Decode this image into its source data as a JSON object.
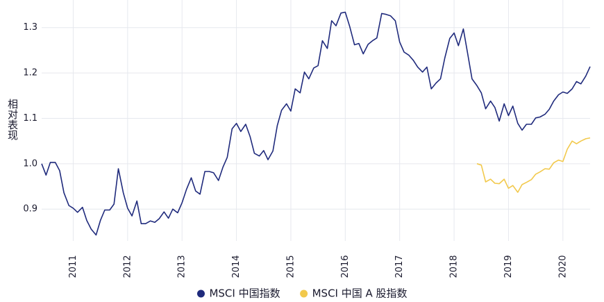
{
  "chart_data": {
    "type": "line",
    "y_label": "相对表现",
    "xlim": [
      2010.42,
      2020.5
    ],
    "xticks": [
      2011,
      2012,
      2013,
      2014,
      2015,
      2016,
      2017,
      2018,
      2019,
      2020
    ],
    "ylim": [
      0.83,
      1.35
    ],
    "yticks": [
      0.9,
      {
        "value": 1,
        "label": "1.0"
      },
      1.1,
      1.2,
      1.3
    ],
    "grid": true,
    "legend": "bottom",
    "series": [
      {
        "name": "MSCI 中国指数",
        "color": "#1f2a7c",
        "x": [
          2010.42,
          2010.5,
          2010.58,
          2010.67,
          2010.75,
          2010.83,
          2010.92,
          2011,
          2011.08,
          2011.17,
          2011.25,
          2011.33,
          2011.42,
          2011.5,
          2011.58,
          2011.67,
          2011.75,
          2011.83,
          2011.92,
          2012,
          2012.08,
          2012.17,
          2012.25,
          2012.33,
          2012.42,
          2012.5,
          2012.58,
          2012.67,
          2012.75,
          2012.83,
          2012.92,
          2013,
          2013.08,
          2013.17,
          2013.25,
          2013.33,
          2013.42,
          2013.5,
          2013.58,
          2013.67,
          2013.75,
          2013.83,
          2013.92,
          2014,
          2014.08,
          2014.17,
          2014.25,
          2014.33,
          2014.42,
          2014.5,
          2014.58,
          2014.67,
          2014.75,
          2014.83,
          2014.92,
          2015,
          2015.08,
          2015.17,
          2015.25,
          2015.33,
          2015.42,
          2015.5,
          2015.58,
          2015.67,
          2015.75,
          2015.83,
          2015.92,
          2016,
          2016.08,
          2016.17,
          2016.25,
          2016.33,
          2016.42,
          2016.5,
          2016.58,
          2016.67,
          2016.75,
          2016.83,
          2016.92,
          2017,
          2017.08,
          2017.17,
          2017.25,
          2017.33,
          2017.42,
          2017.5,
          2017.58,
          2017.67,
          2017.75,
          2017.83,
          2017.92,
          2018,
          2018.08,
          2018.17,
          2018.25,
          2018.33,
          2018.42,
          2018.5,
          2018.58,
          2018.67,
          2018.75,
          2018.83,
          2018.92,
          2019,
          2019.08,
          2019.17,
          2019.25,
          2019.33,
          2019.42,
          2019.5,
          2019.58,
          2019.67,
          2019.75,
          2019.83,
          2019.92,
          2020,
          2020.08,
          2020.17,
          2020.25,
          2020.33,
          2020.42,
          2020.5
        ],
        "values": [
          1.0,
          0.975,
          1.003,
          1.003,
          0.985,
          0.936,
          0.908,
          0.902,
          0.893,
          0.904,
          0.875,
          0.856,
          0.843,
          0.875,
          0.898,
          0.898,
          0.911,
          0.989,
          0.936,
          0.902,
          0.885,
          0.918,
          0.868,
          0.868,
          0.874,
          0.871,
          0.879,
          0.894,
          0.88,
          0.9,
          0.892,
          0.914,
          0.943,
          0.969,
          0.94,
          0.933,
          0.983,
          0.983,
          0.98,
          0.963,
          0.992,
          1.014,
          1.077,
          1.089,
          1.071,
          1.087,
          1.06,
          1.023,
          1.017,
          1.029,
          1.009,
          1.028,
          1.084,
          1.118,
          1.132,
          1.116,
          1.165,
          1.156,
          1.202,
          1.187,
          1.211,
          1.216,
          1.271,
          1.254,
          1.315,
          1.304,
          1.332,
          1.334,
          1.303,
          1.262,
          1.265,
          1.242,
          1.263,
          1.271,
          1.277,
          1.331,
          1.329,
          1.326,
          1.315,
          1.268,
          1.246,
          1.239,
          1.228,
          1.213,
          1.202,
          1.213,
          1.165,
          1.178,
          1.187,
          1.233,
          1.276,
          1.288,
          1.26,
          1.297,
          1.242,
          1.187,
          1.172,
          1.156,
          1.121,
          1.138,
          1.124,
          1.094,
          1.132,
          1.106,
          1.127,
          1.089,
          1.074,
          1.087,
          1.087,
          1.101,
          1.103,
          1.109,
          1.12,
          1.138,
          1.152,
          1.158,
          1.155,
          1.165,
          1.181,
          1.176,
          1.193,
          1.214
        ]
      },
      {
        "name": "MSCI 中国 A 股指数",
        "color": "#f2c94c",
        "x": [
          2018.42,
          2018.5,
          2018.58,
          2018.67,
          2018.75,
          2018.83,
          2018.92,
          2019,
          2019.08,
          2019.17,
          2019.25,
          2019.33,
          2019.42,
          2019.5,
          2019.58,
          2019.67,
          2019.75,
          2019.83,
          2019.92,
          2020,
          2020.08,
          2020.17,
          2020.25,
          2020.33,
          2020.42,
          2020.5
        ],
        "values": [
          1.0,
          0.997,
          0.96,
          0.966,
          0.957,
          0.956,
          0.966,
          0.946,
          0.952,
          0.937,
          0.954,
          0.959,
          0.965,
          0.977,
          0.982,
          0.989,
          0.988,
          1.002,
          1.008,
          1.005,
          1.032,
          1.05,
          1.044,
          1.05,
          1.055,
          1.057
        ]
      }
    ]
  }
}
